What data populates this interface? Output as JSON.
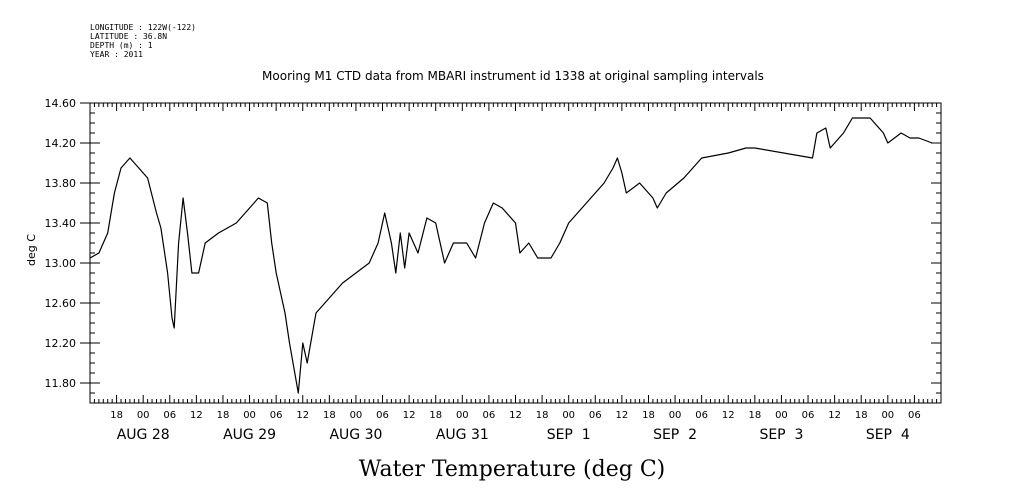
{
  "header": {
    "meta_lines": [
      "LONGITUDE : 122W(-122)",
      "LATITUDE : 36.8N",
      "DEPTH (m) : 1",
      "YEAR : 2011"
    ]
  },
  "chart_data": {
    "type": "line",
    "title": "Mooring M1 CTD data from MBARI instrument id 1338 at original sampling intervals",
    "xlabel": "Water Temperature (deg C)",
    "ylabel": "deg C",
    "ylim": [
      11.6,
      14.6
    ],
    "yticks": [
      "11.80",
      "12.20",
      "12.60",
      "13.00",
      "13.40",
      "13.80",
      "14.20",
      "14.60"
    ],
    "xlim": [
      "2011-08-27 12:00",
      "2011-09-04 12:00"
    ],
    "x_hour_labels": [
      "18",
      "00",
      "06",
      "12",
      "18",
      "00",
      "06",
      "12",
      "18",
      "00",
      "06",
      "12",
      "18",
      "00",
      "06",
      "12",
      "18",
      "00",
      "06",
      "12",
      "18",
      "00",
      "06",
      "12",
      "18",
      "00",
      "06",
      "12",
      "18",
      "00",
      "06"
    ],
    "x_day_labels": [
      "AUG 28",
      "AUG 29",
      "AUG 30",
      "AUG 31",
      "SEP  1",
      "SEP  2",
      "SEP  3",
      "SEP  4"
    ],
    "grid": false,
    "line_color": "#000000",
    "series": [
      {
        "values": [
          [
            "2011-08-27 12:00",
            13.05
          ],
          [
            "2011-08-27 14:00",
            13.1
          ],
          [
            "2011-08-27 16:00",
            13.3
          ],
          [
            "2011-08-27 17:30",
            13.7
          ],
          [
            "2011-08-27 19:00",
            13.95
          ],
          [
            "2011-08-27 21:00",
            14.05
          ],
          [
            "2011-08-27 23:00",
            13.95
          ],
          [
            "2011-08-28 01:00",
            13.85
          ],
          [
            "2011-08-28 03:00",
            13.5
          ],
          [
            "2011-08-28 04:00",
            13.35
          ],
          [
            "2011-08-28 05:30",
            12.9
          ],
          [
            "2011-08-28 06:30",
            12.45
          ],
          [
            "2011-08-28 07:00",
            12.35
          ],
          [
            "2011-08-28 08:00",
            13.2
          ],
          [
            "2011-08-28 09:00",
            13.65
          ],
          [
            "2011-08-28 10:00",
            13.3
          ],
          [
            "2011-08-28 11:00",
            12.9
          ],
          [
            "2011-08-28 12:30",
            12.9
          ],
          [
            "2011-08-28 14:00",
            13.2
          ],
          [
            "2011-08-28 17:00",
            13.3
          ],
          [
            "2011-08-28 21:00",
            13.4
          ],
          [
            "2011-08-29 00:00",
            13.55
          ],
          [
            "2011-08-29 02:00",
            13.65
          ],
          [
            "2011-08-29 04:00",
            13.6
          ],
          [
            "2011-08-29 05:00",
            13.2
          ],
          [
            "2011-08-29 06:00",
            12.9
          ],
          [
            "2011-08-29 08:00",
            12.5
          ],
          [
            "2011-08-29 09:00",
            12.2
          ],
          [
            "2011-08-29 10:00",
            11.95
          ],
          [
            "2011-08-29 11:00",
            11.7
          ],
          [
            "2011-08-29 12:00",
            12.2
          ],
          [
            "2011-08-29 13:00",
            12.0
          ],
          [
            "2011-08-29 15:00",
            12.5
          ],
          [
            "2011-08-29 18:00",
            12.65
          ],
          [
            "2011-08-29 21:00",
            12.8
          ],
          [
            "2011-08-30 00:00",
            12.9
          ],
          [
            "2011-08-30 03:00",
            13.0
          ],
          [
            "2011-08-30 05:00",
            13.2
          ],
          [
            "2011-08-30 06:30",
            13.5
          ],
          [
            "2011-08-30 08:00",
            13.2
          ],
          [
            "2011-08-30 09:00",
            12.9
          ],
          [
            "2011-08-30 10:00",
            13.3
          ],
          [
            "2011-08-30 11:00",
            12.95
          ],
          [
            "2011-08-30 12:00",
            13.3
          ],
          [
            "2011-08-30 14:00",
            13.1
          ],
          [
            "2011-08-30 16:00",
            13.45
          ],
          [
            "2011-08-30 18:00",
            13.4
          ],
          [
            "2011-08-30 20:00",
            13.0
          ],
          [
            "2011-08-30 22:00",
            13.2
          ],
          [
            "2011-08-31 01:00",
            13.2
          ],
          [
            "2011-08-31 03:00",
            13.05
          ],
          [
            "2011-08-31 05:00",
            13.4
          ],
          [
            "2011-08-31 07:00",
            13.6
          ],
          [
            "2011-08-31 09:00",
            13.55
          ],
          [
            "2011-08-31 12:00",
            13.4
          ],
          [
            "2011-08-31 13:00",
            13.1
          ],
          [
            "2011-08-31 15:00",
            13.2
          ],
          [
            "2011-08-31 17:00",
            13.05
          ],
          [
            "2011-08-31 20:00",
            13.05
          ],
          [
            "2011-08-31 22:00",
            13.2
          ],
          [
            "2011-09-01 00:00",
            13.4
          ],
          [
            "2011-09-01 04:00",
            13.6
          ],
          [
            "2011-09-01 08:00",
            13.8
          ],
          [
            "2011-09-01 10:00",
            13.95
          ],
          [
            "2011-09-01 11:00",
            14.05
          ],
          [
            "2011-09-01 12:00",
            13.9
          ],
          [
            "2011-09-01 13:00",
            13.7
          ],
          [
            "2011-09-01 16:00",
            13.8
          ],
          [
            "2011-09-01 19:00",
            13.65
          ],
          [
            "2011-09-01 20:00",
            13.55
          ],
          [
            "2011-09-01 22:00",
            13.7
          ],
          [
            "2011-09-02 02:00",
            13.85
          ],
          [
            "2011-09-02 06:00",
            14.05
          ],
          [
            "2011-09-02 12:00",
            14.1
          ],
          [
            "2011-09-02 16:00",
            14.15
          ],
          [
            "2011-09-02 18:00",
            14.15
          ],
          [
            "2011-09-03 07:00",
            14.05
          ],
          [
            "2011-09-03 08:00",
            14.3
          ],
          [
            "2011-09-03 10:00",
            14.35
          ],
          [
            "2011-09-03 11:00",
            14.15
          ],
          [
            "2011-09-03 14:00",
            14.3
          ],
          [
            "2011-09-03 16:00",
            14.45
          ],
          [
            "2011-09-03 20:00",
            14.45
          ],
          [
            "2011-09-03 23:00",
            14.3
          ],
          [
            "2011-09-04 00:00",
            14.2
          ],
          [
            "2011-09-04 03:00",
            14.3
          ],
          [
            "2011-09-04 05:00",
            14.25
          ],
          [
            "2011-09-04 07:00",
            14.25
          ],
          [
            "2011-09-04 10:00",
            14.2
          ]
        ]
      }
    ]
  }
}
